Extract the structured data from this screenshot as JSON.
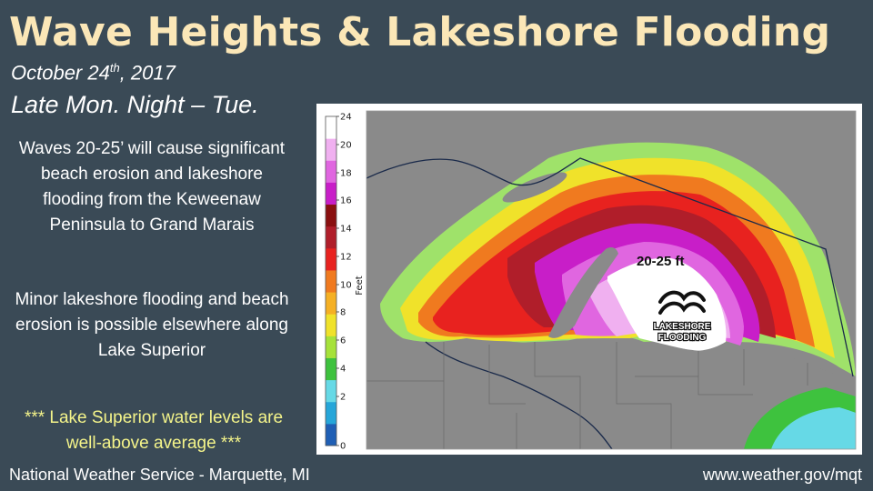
{
  "header": {
    "title": "Wave Heights & Lakeshore Flooding",
    "date_main": "October 24",
    "date_suffix": "th",
    "date_year": ", 2017",
    "period": "Late Mon. Night – Tue."
  },
  "text": {
    "paragraph1": "Waves 20-25’ will cause significant beach erosion and lakeshore flooding from the Keweenaw Peninsula to Grand Marais",
    "paragraph2": "Minor lakeshore flooding and beach erosion is possible elsewhere along Lake Superior",
    "note": "*** Lake Superior water levels are well-above average ***"
  },
  "footer": {
    "left": "National Weather Service - Marquette, MI",
    "right": "www.weather.gov/mqt"
  },
  "map": {
    "colorbar_unit": "Feet",
    "colorbar_ticks": [
      "24",
      "20",
      "18",
      "16",
      "14",
      "12",
      "10",
      "8",
      "6",
      "4",
      "2",
      "0"
    ],
    "colorbar_colors": [
      "#1f5fb5",
      "#26a6d9",
      "#66d9e6",
      "#3ec23e",
      "#a6e23a",
      "#f0e22a",
      "#f5b024",
      "#f07a1f",
      "#e8221f",
      "#b01e2a",
      "#8a1010",
      "#c81ec8",
      "#e066e0",
      "#f0b0f0",
      "#ffffff"
    ],
    "callout_label": "20-25 ft",
    "badge_line1": "LAKESHORE",
    "badge_line2": "FLOODING",
    "land_color": "#8a8a8a",
    "peak_color": "#ffffff"
  }
}
